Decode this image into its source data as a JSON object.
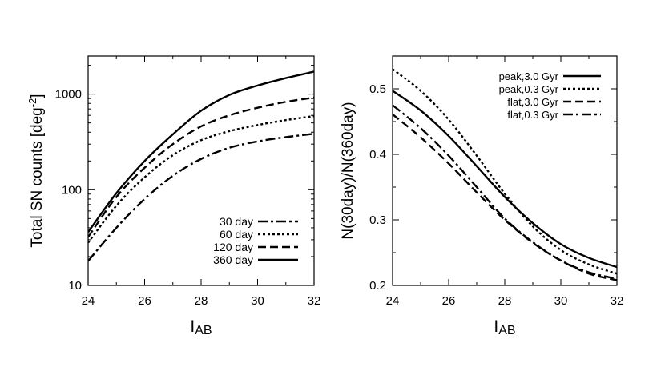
{
  "chart_data": [
    {
      "type": "line",
      "yscale": "log",
      "xlabel": "I",
      "xlabel_sub": "AB",
      "ylabel": "Total SN counts [deg",
      "ylabel_sup": "-2",
      "ylabel_close": "]",
      "xlim": [
        24,
        32
      ],
      "ylim": [
        10,
        2500
      ],
      "xticks": [
        24,
        26,
        28,
        30,
        32
      ],
      "yticks": [
        10,
        100,
        1000
      ],
      "legend_position": "bottom-right",
      "x": [
        24,
        25,
        26,
        27,
        28,
        29,
        30,
        31,
        32
      ],
      "series": [
        {
          "name": "30 day",
          "dash": "dashdot",
          "values": [
            18,
            40,
            80,
            140,
            210,
            275,
            320,
            355,
            385
          ]
        },
        {
          "name": "60 day",
          "dash": "dotted",
          "values": [
            28,
            68,
            135,
            230,
            330,
            410,
            475,
            535,
            590
          ]
        },
        {
          "name": "120 day",
          "dash": "dashed",
          "values": [
            32,
            84,
            170,
            300,
            460,
            600,
            720,
            830,
            920
          ]
        },
        {
          "name": "360 day",
          "dash": "solid",
          "values": [
            36,
            92,
            200,
            380,
            670,
            980,
            1230,
            1470,
            1720
          ]
        }
      ]
    },
    {
      "type": "line",
      "yscale": "linear",
      "xlabel": "I",
      "xlabel_sub": "AB",
      "ylabel": "N(30day)/N(360day)",
      "xlim": [
        24,
        32
      ],
      "ylim": [
        0.2,
        0.55
      ],
      "xticks": [
        24,
        26,
        28,
        30,
        32
      ],
      "yticks": [
        0.2,
        0.3,
        0.4,
        0.5
      ],
      "legend_position": "top-right",
      "x": [
        24,
        25,
        26,
        27,
        28,
        29,
        30,
        31,
        32
      ],
      "series": [
        {
          "name": "peak,3.0 Gyr",
          "dash": "solid",
          "values": [
            0.497,
            0.467,
            0.428,
            0.382,
            0.335,
            0.295,
            0.263,
            0.242,
            0.228
          ]
        },
        {
          "name": "peak,0.3 Gyr",
          "dash": "dotted",
          "values": [
            0.53,
            0.497,
            0.453,
            0.398,
            0.34,
            0.29,
            0.254,
            0.232,
            0.218
          ]
        },
        {
          "name": "flat,3.0 Gyr",
          "dash": "dashed",
          "values": [
            0.461,
            0.426,
            0.386,
            0.342,
            0.3,
            0.265,
            0.238,
            0.218,
            0.208
          ]
        },
        {
          "name": "flat,0.3 Gyr",
          "dash": "dashdot",
          "values": [
            0.475,
            0.44,
            0.398,
            0.35,
            0.302,
            0.266,
            0.238,
            0.22,
            0.21
          ]
        }
      ]
    }
  ]
}
